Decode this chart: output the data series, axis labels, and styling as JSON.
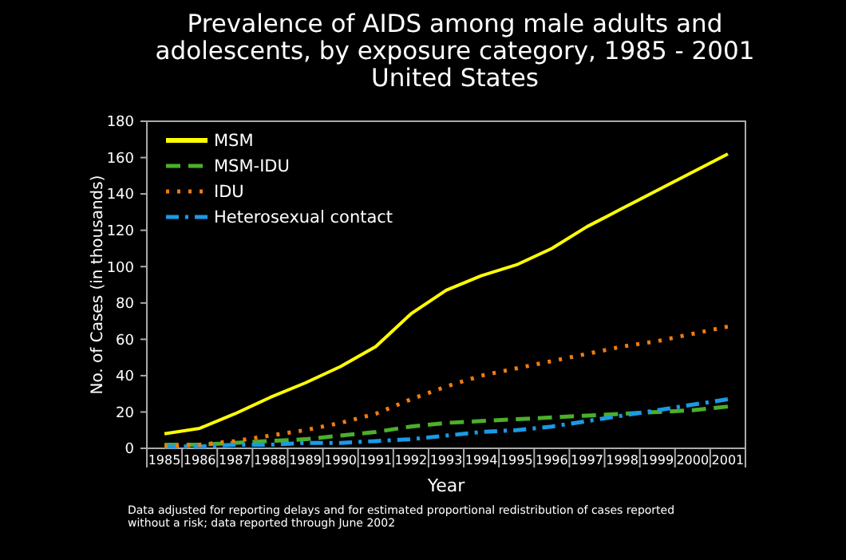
{
  "chart_data": {
    "type": "line",
    "title": "Prevalence of AIDS among male adults and adolescents, by exposure category, 1985 - 2001\nUnited States",
    "xlabel": "Year",
    "ylabel": "No. of Cases (in thousands)",
    "categories": [
      "1985",
      "1986",
      "1987",
      "1988",
      "1989",
      "1990",
      "1991",
      "1992",
      "1993",
      "1994",
      "1995",
      "1996",
      "1997",
      "1998",
      "1999",
      "2000",
      "2001"
    ],
    "series": [
      {
        "name": "MSM",
        "color": "#ffff00",
        "line_style": "solid",
        "values": [
          8,
          11,
          19,
          28,
          36,
          45,
          56,
          74,
          87,
          95,
          101,
          110,
          122,
          132,
          142,
          152,
          162
        ]
      },
      {
        "name": "MSM-IDU",
        "color": "#4caf2a",
        "line_style": "dashed",
        "values": [
          2,
          2,
          3,
          4,
          5,
          7,
          9,
          12,
          14,
          15,
          16,
          17,
          18,
          19,
          20,
          21,
          23
        ]
      },
      {
        "name": "IDU",
        "color": "#f07c10",
        "line_style": "dotted",
        "values": [
          1,
          2,
          4,
          7,
          10,
          14,
          19,
          27,
          34,
          40,
          44,
          48,
          52,
          56,
          59,
          63,
          67
        ]
      },
      {
        "name": "Heterosexual contact",
        "color": "#1a9ae6",
        "line_style": "dashdot",
        "values": [
          1,
          1,
          2,
          2,
          3,
          3,
          4,
          5,
          7,
          9,
          10,
          12,
          15,
          18,
          21,
          24,
          27
        ]
      }
    ],
    "ylim": [
      0,
      180
    ],
    "yticks": [
      0,
      20,
      40,
      60,
      80,
      100,
      120,
      140,
      160,
      180
    ],
    "grid": false,
    "legend": "top left",
    "marker": "none",
    "annotations": [
      "Data adjusted for reporting delays and for estimated proportional redistribution of cases reported\nwithout a risk; data reported through June 2002"
    ]
  }
}
